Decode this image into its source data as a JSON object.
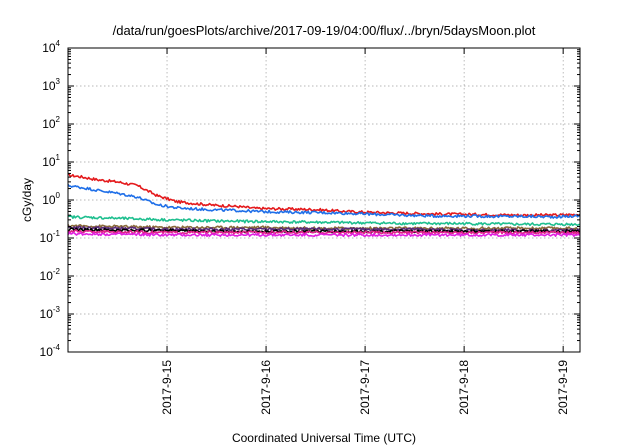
{
  "chart_data": {
    "type": "line",
    "title": "/data/run/goesPlots/archive/2017-09-19/04:00/flux/../bryn/5daysMoon.plot",
    "xlabel": "Coordinated Universal Time (UTC)",
    "ylabel": "cGy/day",
    "yscale": "log",
    "ylim": [
      0.0001,
      10000
    ],
    "xlim": [
      0,
      5.17
    ],
    "x_ticks": [
      {
        "x": 1,
        "label": "2017-9-15"
      },
      {
        "x": 2,
        "label": "2017-9-16"
      },
      {
        "x": 3,
        "label": "2017-9-17"
      },
      {
        "x": 4,
        "label": "2017-9-18"
      },
      {
        "x": 5,
        "label": "2017-9-19"
      }
    ],
    "y_ticks": [
      {
        "exp": "-4",
        "value": 0.0001
      },
      {
        "exp": "-3",
        "value": 0.001
      },
      {
        "exp": "-2",
        "value": 0.01
      },
      {
        "exp": "-1",
        "value": 0.1
      },
      {
        "exp": "0",
        "value": 1
      },
      {
        "exp": "1",
        "value": 10
      },
      {
        "exp": "2",
        "value": 100
      },
      {
        "exp": "3",
        "value": 1000
      },
      {
        "exp": "4",
        "value": 10000
      }
    ],
    "grid": true,
    "legend": "none",
    "series": [
      {
        "color": "#e41a1c",
        "x": [
          0,
          0.1,
          0.2,
          0.3,
          0.5,
          0.7,
          0.9,
          1.1,
          1.3,
          1.5,
          1.7,
          1.9,
          2.2,
          2.5,
          2.8,
          3.1,
          3.4,
          3.7,
          4.0,
          4.3,
          4.6,
          4.9,
          5.17
        ],
        "y": [
          4.5,
          4.2,
          3.8,
          3.4,
          3.0,
          2.4,
          1.3,
          0.9,
          0.8,
          0.72,
          0.68,
          0.6,
          0.58,
          0.56,
          0.5,
          0.47,
          0.45,
          0.43,
          0.42,
          0.41,
          0.4,
          0.4,
          0.42
        ]
      },
      {
        "color": "#1f6fe8",
        "x": [
          0,
          0.1,
          0.2,
          0.3,
          0.5,
          0.7,
          0.9,
          1.1,
          1.3,
          1.5,
          1.7,
          1.9,
          2.2,
          2.5,
          2.8,
          3.1,
          3.4,
          3.7,
          4.0,
          4.3,
          4.6,
          4.9,
          5.17
        ],
        "y": [
          2.4,
          2.2,
          2.0,
          1.8,
          1.5,
          1.2,
          0.75,
          0.62,
          0.58,
          0.55,
          0.53,
          0.5,
          0.48,
          0.47,
          0.45,
          0.42,
          0.4,
          0.38,
          0.38,
          0.37,
          0.37,
          0.36,
          0.38
        ]
      },
      {
        "color": "#1fbf8f",
        "x": [
          0,
          0.5,
          1.0,
          1.5,
          2.0,
          2.5,
          3.0,
          3.5,
          4.0,
          4.5,
          5.17
        ],
        "y": [
          0.36,
          0.33,
          0.3,
          0.28,
          0.27,
          0.26,
          0.25,
          0.24,
          0.24,
          0.23,
          0.23
        ]
      },
      {
        "color": "#8a6a3a",
        "x": [
          0,
          0.5,
          1.0,
          1.5,
          2.0,
          2.5,
          3.0,
          3.5,
          4.0,
          4.5,
          5.17
        ],
        "y": [
          0.21,
          0.2,
          0.19,
          0.19,
          0.19,
          0.18,
          0.18,
          0.18,
          0.18,
          0.18,
          0.18
        ]
      },
      {
        "color": "#5a2a7a",
        "x": [
          0,
          0.5,
          1.0,
          1.5,
          2.0,
          2.5,
          3.0,
          3.5,
          4.0,
          4.5,
          5.17
        ],
        "y": [
          0.19,
          0.18,
          0.17,
          0.17,
          0.17,
          0.17,
          0.17,
          0.17,
          0.16,
          0.16,
          0.16
        ]
      },
      {
        "color": "#000000",
        "x": [
          0,
          0.5,
          1.0,
          1.5,
          2.0,
          2.5,
          3.0,
          3.5,
          4.0,
          4.5,
          5.17
        ],
        "y": [
          0.17,
          0.16,
          0.16,
          0.15,
          0.15,
          0.15,
          0.15,
          0.15,
          0.15,
          0.15,
          0.15
        ]
      },
      {
        "color": "#e0218a",
        "x": [
          0,
          0.5,
          1.0,
          1.5,
          2.0,
          2.5,
          3.0,
          3.5,
          4.0,
          4.5,
          5.17
        ],
        "y": [
          0.15,
          0.145,
          0.14,
          0.14,
          0.14,
          0.14,
          0.14,
          0.14,
          0.14,
          0.14,
          0.14
        ]
      },
      {
        "color": "#e020e0",
        "x": [
          0,
          0.5,
          1.0,
          1.5,
          2.0,
          2.5,
          3.0,
          3.5,
          4.0,
          4.5,
          5.17
        ],
        "y": [
          0.13,
          0.125,
          0.12,
          0.12,
          0.12,
          0.12,
          0.12,
          0.12,
          0.12,
          0.12,
          0.12
        ]
      }
    ]
  }
}
